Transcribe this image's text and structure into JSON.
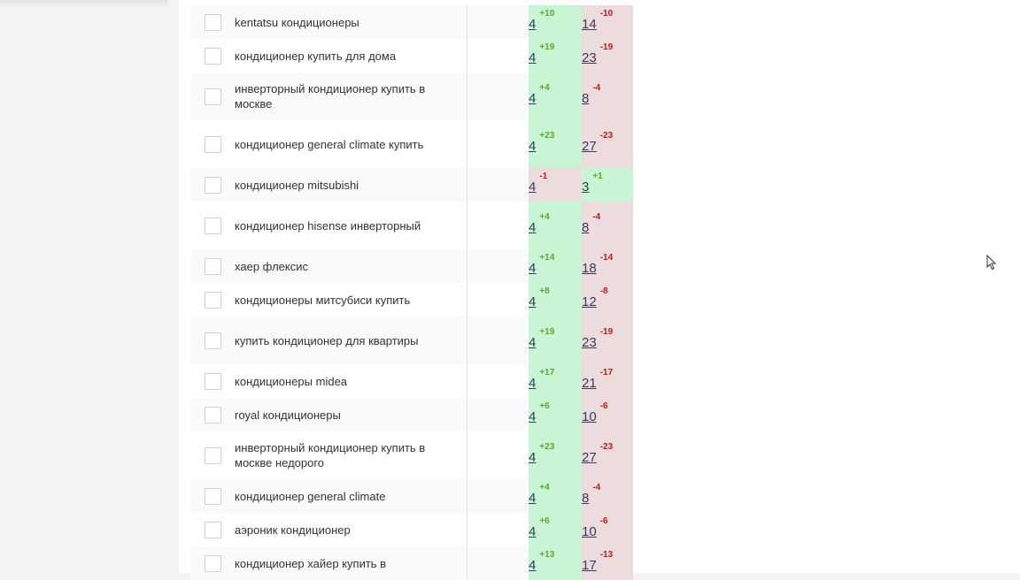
{
  "colors": {
    "good_bg": "#c8f5d3",
    "bad_bg": "#ecdcdd",
    "delta_up": "#5aa82f",
    "delta_down": "#c01a1a"
  },
  "rows": [
    {
      "keyword": "kentatsu кондиционеры",
      "p1": "4",
      "d1": "+10",
      "p2": "14",
      "d2": "-10",
      "s1": "good",
      "s2": "bad"
    },
    {
      "keyword": "кондиционер купить для дома",
      "p1": "4",
      "d1": "+19",
      "p2": "23",
      "d2": "-19",
      "s1": "good",
      "s2": "bad"
    },
    {
      "keyword": "инверторный кондиционер купить в москве",
      "p1": "4",
      "d1": "+4",
      "p2": "8",
      "d2": "-4",
      "s1": "good",
      "s2": "bad"
    },
    {
      "keyword": "кондиционер general climate купить",
      "p1": "4",
      "d1": "+23",
      "p2": "27",
      "d2": "-23",
      "s1": "good",
      "s2": "bad"
    },
    {
      "keyword": "кондиционер mitsubishi",
      "p1": "4",
      "d1": "-1",
      "p2": "3",
      "d2": "+1",
      "s1": "bad",
      "s2": "good"
    },
    {
      "keyword": "кондиционер hisense инверторный",
      "p1": "4",
      "d1": "+4",
      "p2": "8",
      "d2": "-4",
      "s1": "good",
      "s2": "bad"
    },
    {
      "keyword": "хаер флексис",
      "p1": "4",
      "d1": "+14",
      "p2": "18",
      "d2": "-14",
      "s1": "good",
      "s2": "bad"
    },
    {
      "keyword": "кондиционеры митсубиси купить",
      "p1": "4",
      "d1": "+8",
      "p2": "12",
      "d2": "-8",
      "s1": "good",
      "s2": "bad"
    },
    {
      "keyword": "купить кондиционер для квартиры",
      "p1": "4",
      "d1": "+19",
      "p2": "23",
      "d2": "-19",
      "s1": "good",
      "s2": "bad"
    },
    {
      "keyword": "кондиционеры midea",
      "p1": "4",
      "d1": "+17",
      "p2": "21",
      "d2": "-17",
      "s1": "good",
      "s2": "bad"
    },
    {
      "keyword": "royal кондиционеры",
      "p1": "4",
      "d1": "+6",
      "p2": "10",
      "d2": "-6",
      "s1": "good",
      "s2": "bad"
    },
    {
      "keyword": "инверторный кондиционер купить в москве недорого",
      "p1": "4",
      "d1": "+23",
      "p2": "27",
      "d2": "-23",
      "s1": "good",
      "s2": "bad"
    },
    {
      "keyword": "кондиционер general climate",
      "p1": "4",
      "d1": "+4",
      "p2": "8",
      "d2": "-4",
      "s1": "good",
      "s2": "bad"
    },
    {
      "keyword": "аэроник кондиционер",
      "p1": "4",
      "d1": "+6",
      "p2": "10",
      "d2": "-6",
      "s1": "good",
      "s2": "bad"
    },
    {
      "keyword": "кондиционер хайер купить в",
      "p1": "4",
      "d1": "+13",
      "p2": "17",
      "d2": "-13",
      "s1": "good",
      "s2": "bad"
    }
  ]
}
